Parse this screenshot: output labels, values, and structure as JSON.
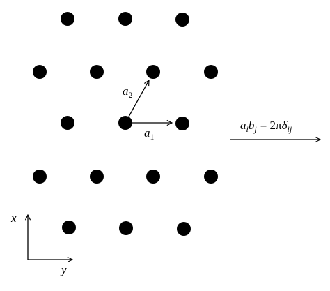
{
  "labels": {
    "a1": {
      "base": "a",
      "sub": "1"
    },
    "a2": {
      "base": "a",
      "sub": "2"
    },
    "equation": {
      "a": "a",
      "a_sub": "i",
      "b": "b",
      "b_sub": "j",
      "middle": "= 2π",
      "delta": "δ",
      "delta_sub": "ij"
    },
    "axis_x": "x",
    "axis_y": "y"
  }
}
